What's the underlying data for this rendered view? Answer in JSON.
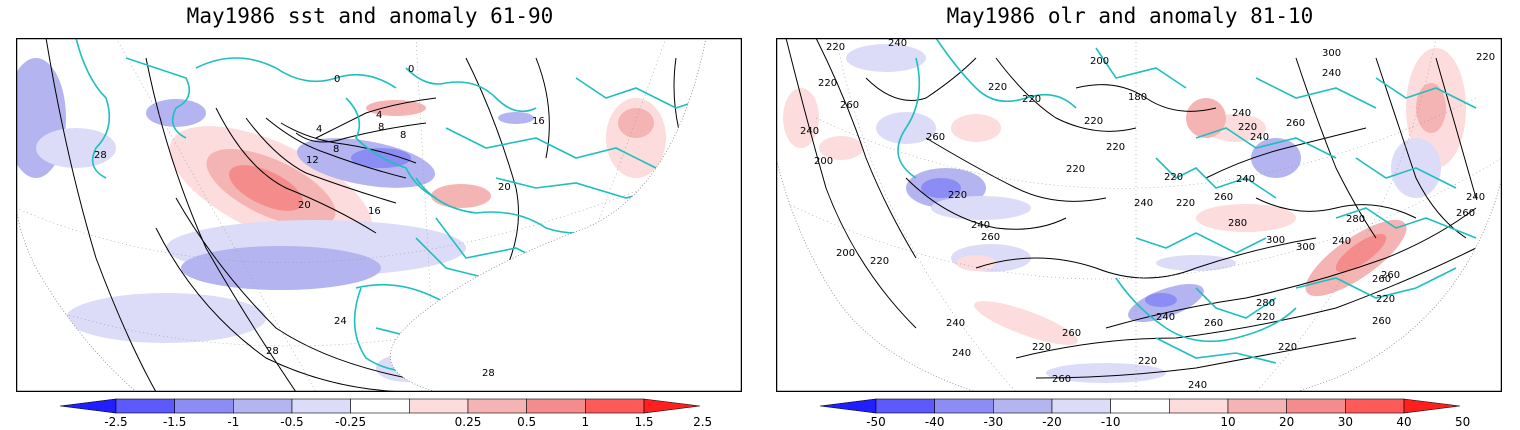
{
  "panels": [
    {
      "title": "May1986 sst and anomaly 61-90",
      "colorbar": {
        "labels": [
          "-2.5",
          "-1.5",
          "-1",
          "-0.5",
          "-0.25",
          "0.25",
          "0.5",
          "1",
          "1.5",
          "2.5"
        ],
        "colors": [
          "#1f1fff",
          "#5a5aff",
          "#8c8cf5",
          "#b4b4f0",
          "#dcdcf8",
          "#ffffff",
          "#fcdcdc",
          "#f5b4b4",
          "#f58c8c",
          "#ff5a5a",
          "#ff1f1f"
        ]
      },
      "contour_labels": [
        "0",
        "0",
        "4",
        "4",
        "8",
        "8",
        "8",
        "12",
        "16",
        "16",
        "20",
        "20",
        "24",
        "28",
        "28",
        "28"
      ]
    },
    {
      "title": "May1986 olr and anomaly 81-10",
      "colorbar": {
        "labels": [
          "-50",
          "-40",
          "-30",
          "-20",
          "-10",
          "10",
          "20",
          "30",
          "40",
          "50"
        ],
        "colors": [
          "#1f1fff",
          "#5a5aff",
          "#8c8cf5",
          "#b4b4f0",
          "#dcdcf8",
          "#ffffff",
          "#fcdcdc",
          "#f5b4b4",
          "#f58c8c",
          "#ff5a5a",
          "#ff1f1f"
        ]
      },
      "contour_labels": [
        "220",
        "240",
        "220",
        "240",
        "220",
        "200",
        "180",
        "220",
        "220",
        "220",
        "260",
        "260",
        "220",
        "200",
        "300",
        "240",
        "240",
        "220",
        "260",
        "240",
        "240",
        "220",
        "220",
        "260",
        "240",
        "220",
        "280",
        "300",
        "300",
        "240",
        "280",
        "260",
        "220",
        "240",
        "260",
        "240",
        "260",
        "280",
        "200",
        "220",
        "240",
        "220",
        "260",
        "240",
        "220",
        "260",
        "240",
        "260",
        "220",
        "260",
        "220",
        "240",
        "260",
        "220"
      ]
    }
  ],
  "colors": {
    "coastline": "#1fbfbf",
    "contour": "#000000",
    "neg_shade": "#b4b4f0",
    "pos_shade": "#f5b4b4"
  }
}
